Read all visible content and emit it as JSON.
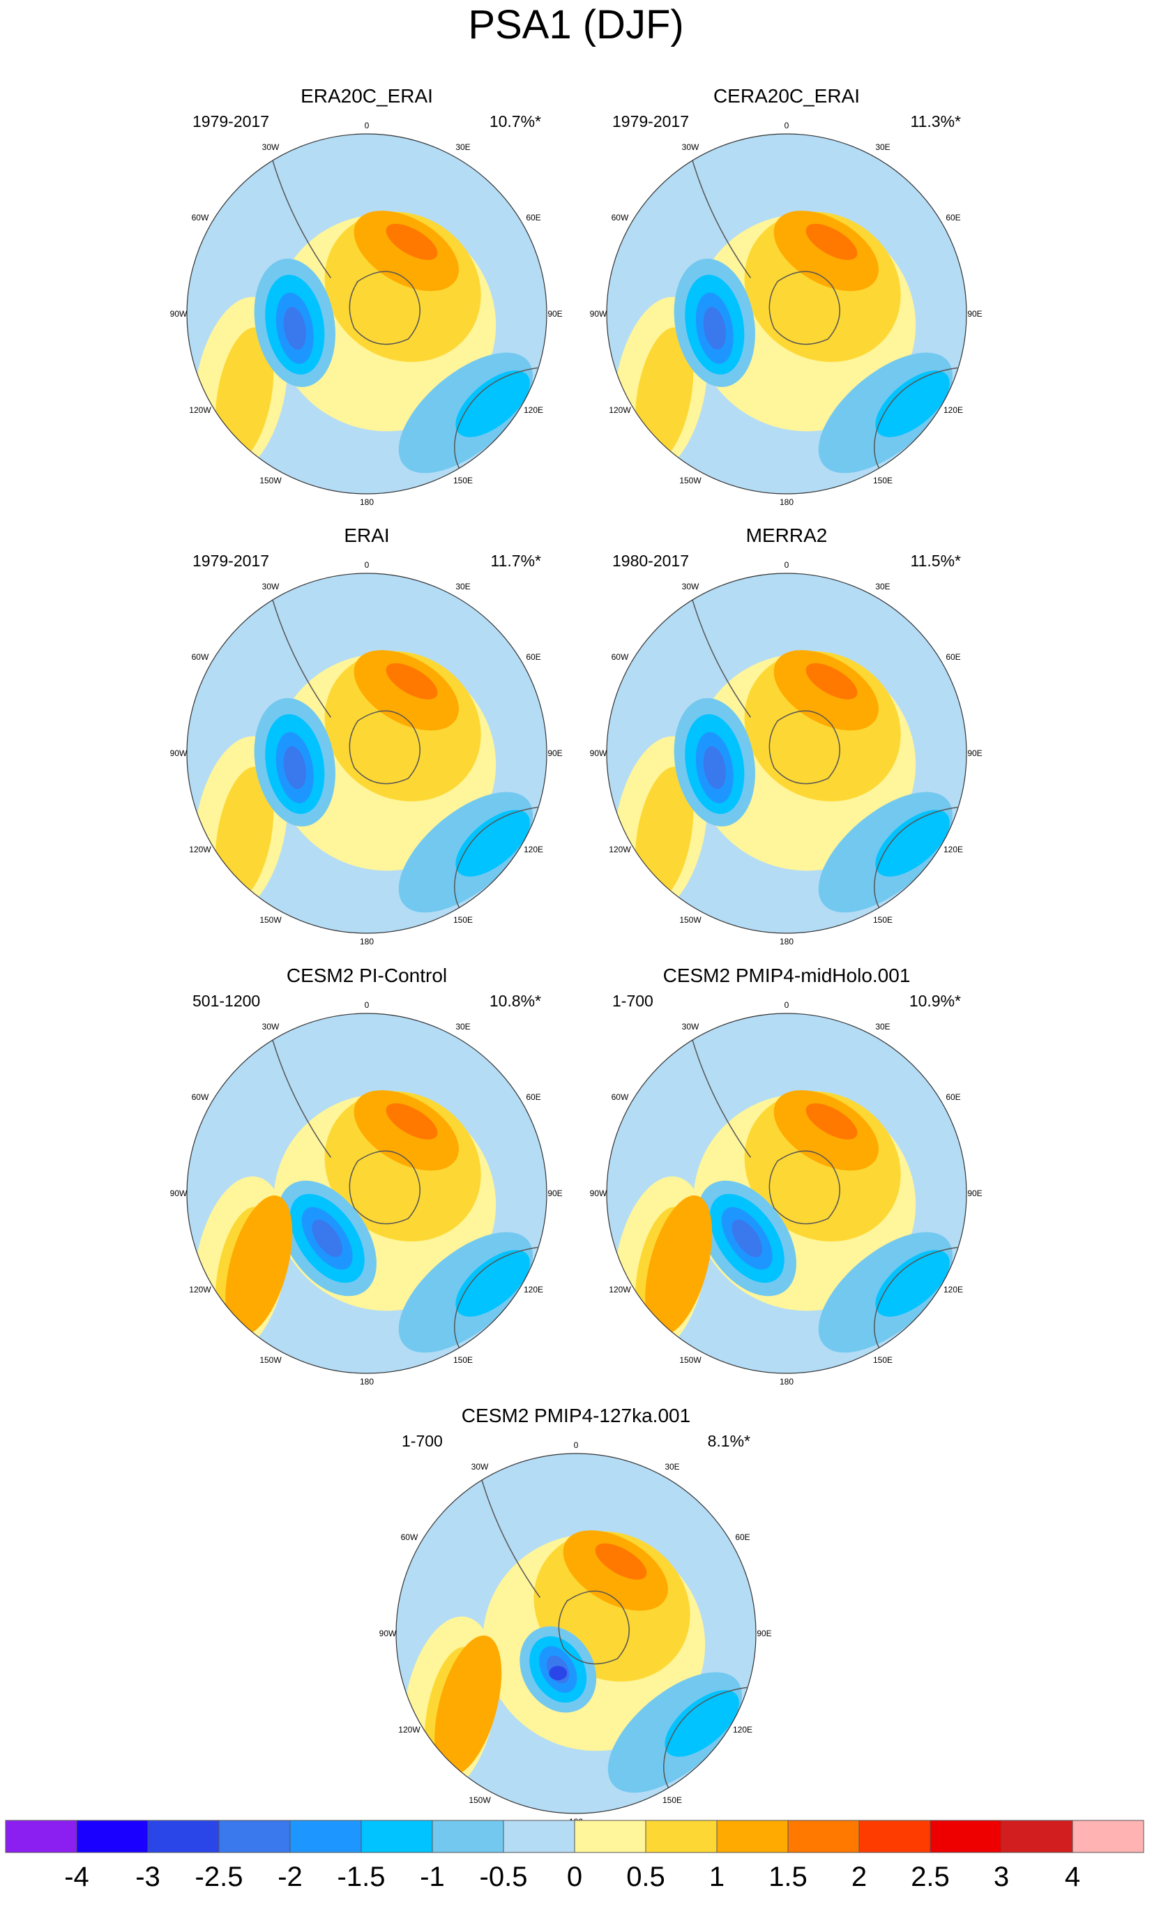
{
  "figure": {
    "title": "PSA1 (DJF)",
    "colors": {
      "land_outline": "#555555",
      "frame": "#333333"
    }
  },
  "lon_labels": [
    "0",
    "30E",
    "60E",
    "90E",
    "120E",
    "150E",
    "180",
    "150W",
    "120W",
    "90W",
    "60W",
    "30W"
  ],
  "panels": [
    {
      "title": "ERA20C_ERAI",
      "period": "1979-2017",
      "variance": "10.7%*"
    },
    {
      "title": "CERA20C_ERAI",
      "period": "1979-2017",
      "variance": "11.3%*"
    },
    {
      "title": "ERAI",
      "period": "1979-2017",
      "variance": "11.7%*"
    },
    {
      "title": "MERRA2",
      "period": "1980-2017",
      "variance": "11.5%*"
    },
    {
      "title": "CESM2 PI-Control",
      "period": "501-1200",
      "variance": "10.8%*"
    },
    {
      "title": "CESM2 PMIP4-midHolo.001",
      "period": "1-700",
      "variance": "10.9%*"
    },
    {
      "title": "CESM2 PMIP4-127ka.001",
      "period": "1-700",
      "variance": "8.1%*"
    }
  ],
  "colorbar": {
    "labels": [
      "-4",
      "-3",
      "-2.5",
      "-2",
      "-1.5",
      "-1",
      "-0.5",
      "0",
      "0.5",
      "1",
      "1.5",
      "2",
      "2.5",
      "3",
      "4"
    ],
    "colors": [
      "#8b1ef0",
      "#1a00ff",
      "#2a46e8",
      "#3a78ee",
      "#1e96ff",
      "#00c3ff",
      "#73c8f0",
      "#b4dcf5",
      "#fff59a",
      "#fdd835",
      "#ffaa00",
      "#ff7800",
      "#ff3c00",
      "#ee0000",
      "#d21e1e",
      "#ffb3b3"
    ]
  }
}
